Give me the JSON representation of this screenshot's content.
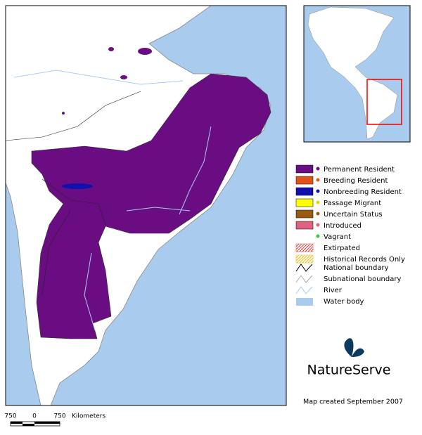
{
  "legend": {
    "items": [
      "Permanent Resident",
      "Breeding Resident",
      "Nonbreeding Resident",
      "Passage Migrant",
      "Uncertain Status",
      "Introduced",
      "Vagrant",
      "Extirpated",
      "Historical Records Only",
      "National boundary",
      "Subnational boundary",
      "River",
      "Water body"
    ]
  },
  "scale_bar": {
    "labels": [
      "750",
      "0",
      "750"
    ],
    "unit": "Kilometers"
  },
  "logo": "NatureServe",
  "credit": "Map created September 2007"
}
